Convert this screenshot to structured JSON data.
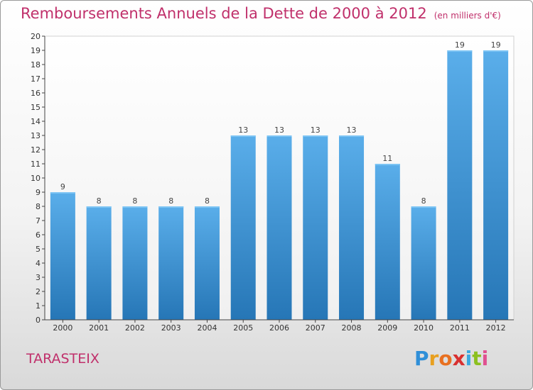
{
  "title": "Remboursements Annuels de la Dette de 2000 à 2012",
  "unit": "(en milliers d'€)",
  "commune": "TARASTEIX",
  "brand": {
    "letters": [
      "P",
      "r",
      "o",
      "x",
      "i",
      "t",
      "i"
    ],
    "colors": [
      "#2f8fd8",
      "#e8a020",
      "#e87020",
      "#d83030",
      "#3aa8e0",
      "#8cc020",
      "#e05090"
    ]
  },
  "colors": {
    "title": "#c0306b",
    "bar_light": "#5aaeea",
    "bar_dark": "#2676b6"
  },
  "chart_data": {
    "type": "bar",
    "title": "Remboursements Annuels de la Dette de 2000 à 2012",
    "xlabel": "",
    "ylabel": "",
    "categories": [
      "2000",
      "2001",
      "2002",
      "2003",
      "2004",
      "2005",
      "2006",
      "2007",
      "2008",
      "2009",
      "2010",
      "2011",
      "2012"
    ],
    "values": [
      9,
      8,
      8,
      8,
      8,
      13,
      13,
      13,
      13,
      11,
      8,
      19,
      19
    ],
    "data_labels": [
      "9",
      "8",
      "8",
      "8",
      "8",
      "13",
      "13",
      "13",
      "13",
      "11",
      "8",
      "19",
      "19"
    ],
    "ylim": [
      0,
      20
    ],
    "yticks": [
      "0",
      "1",
      "2",
      "3",
      "4",
      "5",
      "6",
      "7",
      "8",
      "9",
      "10",
      "11",
      "12",
      "13",
      "14",
      "15",
      "16",
      "17",
      "18",
      "19",
      "20"
    ],
    "grid": false
  }
}
